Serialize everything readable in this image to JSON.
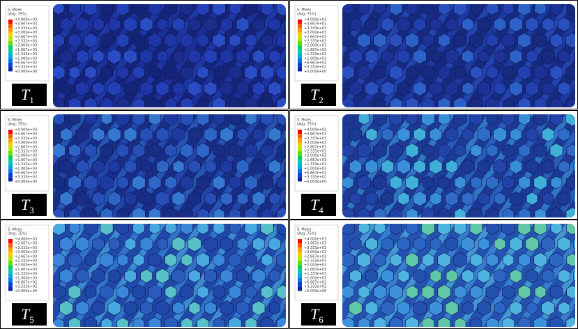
{
  "legend": {
    "title": "S, Mises",
    "subtitle": "(Avg: 75%)",
    "labels": [
      "+4.000e+03",
      "+3.667e+03",
      "+3.333e+03",
      "+3.000e+03",
      "+2.667e+03",
      "+2.333e+03",
      "+2.000e+03",
      "+1.667e+03",
      "+1.333e+03",
      "+1.000e+03",
      "+6.667e+02",
      "+3.333e+02",
      "+0.000e+00"
    ]
  },
  "panels": [
    {
      "letter": "T",
      "index": "1"
    },
    {
      "letter": "T",
      "index": "2"
    },
    {
      "letter": "T",
      "index": "3"
    },
    {
      "letter": "T",
      "index": "4"
    },
    {
      "letter": "T",
      "index": "5"
    },
    {
      "letter": "T",
      "index": "6"
    }
  ]
}
